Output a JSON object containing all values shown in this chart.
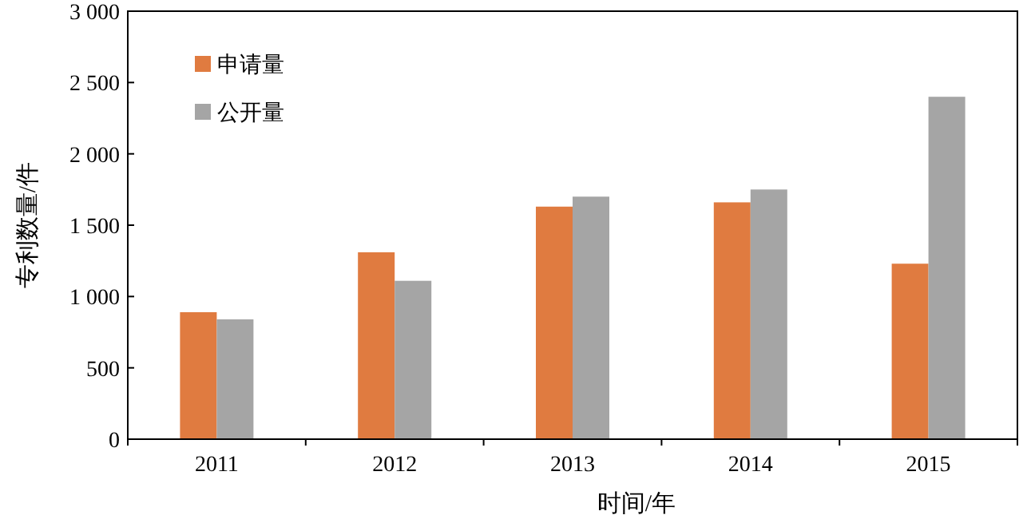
{
  "chart_data": {
    "type": "bar",
    "xlabel": "时间/年",
    "ylabel": "专利数量/件",
    "categories": [
      "2011",
      "2012",
      "2013",
      "2014",
      "2015"
    ],
    "series": [
      {
        "name": "申请量",
        "color": "#e07b40",
        "values": [
          890,
          1310,
          1630,
          1660,
          1230
        ]
      },
      {
        "name": "公开量",
        "color": "#a5a5a5",
        "values": [
          840,
          1110,
          1700,
          1750,
          2400
        ]
      }
    ],
    "ylim": [
      0,
      3000
    ],
    "yticks": [
      0,
      500,
      {
        "value": 1000,
        "label": "1 000"
      },
      {
        "value": 1500,
        "label": "1 500"
      },
      {
        "value": 2000,
        "label": "2 000"
      },
      {
        "value": 2500,
        "label": "2 500"
      },
      {
        "value": 3000,
        "label": "3 000"
      }
    ],
    "grid": false,
    "legend": "top left"
  }
}
